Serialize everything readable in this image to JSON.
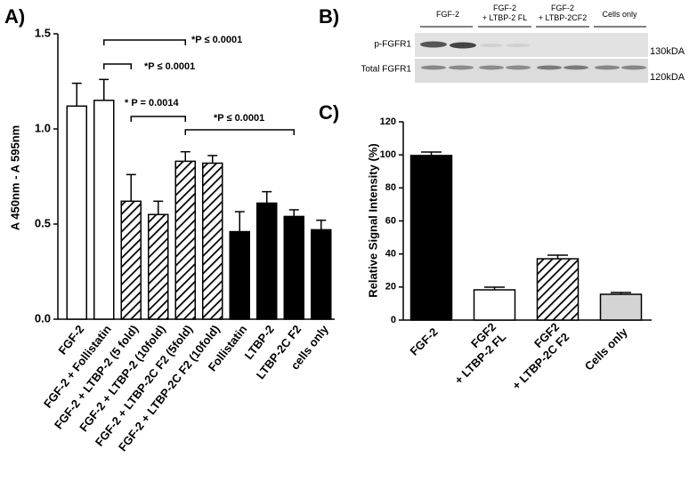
{
  "chart_data": [
    {
      "type": "bar",
      "panel": "A)",
      "ylabel": "A 450nm - A 595nm",
      "categories": [
        "FGF-2",
        "FGF-2 + Follistatin",
        "FGF-2 + LTBP-2 (5 fold)",
        "FGF-2 + LTBP-2 (10fold)",
        "FGF-2 + LTBP-2C F2 (5fold)",
        "FGF-2 + LTBP-2C F2 (10fold)",
        "Follistatin",
        "LTBP-2",
        "LTBP-2C F2",
        "cells only"
      ],
      "values": [
        1.12,
        1.15,
        0.62,
        0.55,
        0.83,
        0.82,
        0.46,
        0.61,
        0.54,
        0.47
      ],
      "errors": [
        0.12,
        0.11,
        0.14,
        0.07,
        0.05,
        0.04,
        0.105,
        0.06,
        0.035,
        0.05
      ],
      "fills": [
        "white",
        "white",
        "hatched",
        "hatched",
        "hatched",
        "hatched",
        "black",
        "black",
        "black",
        "black"
      ],
      "ylim": [
        0,
        1.5
      ],
      "yticks": [
        {
          "value": 0,
          "label": "0.0"
        },
        0.5,
        {
          "value": 1,
          "label": "1.0"
        },
        1.5
      ],
      "annotations": [
        "*P ≤ 0.0001",
        "*P ≤ 0.0001",
        "* P = 0.0014",
        "*P ≤ 0.0001"
      ]
    },
    {
      "type": "bar",
      "panel": "C)",
      "ylabel": "Relative Signal Intensity (%)",
      "categories": [
        [
          "FGF-2"
        ],
        [
          "FGF2",
          "+ LTBP-2 FL"
        ],
        [
          "FGF2",
          "+ LTBP-2C F2"
        ],
        [
          "Cells only"
        ]
      ],
      "values": [
        99.6,
        18.3,
        37.1,
        15.6
      ],
      "errors": [
        2.1,
        1.6,
        2.2,
        1.1
      ],
      "fills": [
        "black",
        "white",
        "hatched",
        "lightgray"
      ],
      "ylim": [
        0,
        120
      ],
      "yticks": [
        0,
        20,
        40,
        60,
        80,
        100,
        120
      ]
    }
  ],
  "blot": {
    "panel": "B)",
    "lanes": [
      [
        "FGF-2"
      ],
      [
        "FGF-2",
        "+ LTBP-2 FL"
      ],
      [
        "FGF-2",
        "+ LTBP-2CF2"
      ],
      [
        "Cells only"
      ]
    ],
    "rows": [
      {
        "label": "p-FGFR1",
        "size": "130kDA"
      },
      {
        "label": "Total FGFR1",
        "size": "120kDA"
      }
    ]
  }
}
